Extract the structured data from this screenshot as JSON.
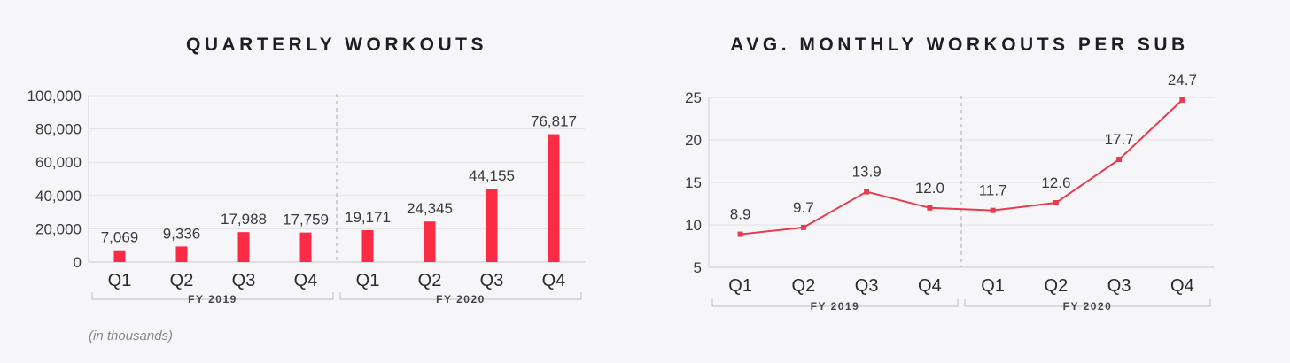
{
  "chart_data": [
    {
      "type": "bar",
      "title": "QUARTERLY WORKOUTS",
      "categories": [
        "Q1",
        "Q2",
        "Q3",
        "Q4",
        "Q1",
        "Q2",
        "Q3",
        "Q4"
      ],
      "groups": [
        {
          "label": "FY 2019",
          "from": 0,
          "to": 3
        },
        {
          "label": "FY 2020",
          "from": 4,
          "to": 7
        }
      ],
      "values": [
        7069,
        9336,
        17988,
        17759,
        19171,
        24345,
        44155,
        76817
      ],
      "value_labels": [
        "7,069",
        "9,336",
        "17,988",
        "17,759",
        "19,171",
        "24,345",
        "44,155",
        "76,817"
      ],
      "ylim": [
        0,
        100000
      ],
      "yticks": [
        0,
        20000,
        40000,
        60000,
        80000,
        100000
      ],
      "ytick_labels": [
        "0",
        "20,000",
        "40,000",
        "60,000",
        "80,000",
        "100,000"
      ],
      "note": "(in thousands)",
      "color": "#fb2a45",
      "grid": true
    },
    {
      "type": "line",
      "title": "AVG. MONTHLY WORKOUTS PER SUB",
      "categories": [
        "Q1",
        "Q2",
        "Q3",
        "Q4",
        "Q1",
        "Q2",
        "Q3",
        "Q4"
      ],
      "groups": [
        {
          "label": "FY 2019",
          "from": 0,
          "to": 3
        },
        {
          "label": "FY 2020",
          "from": 4,
          "to": 7
        }
      ],
      "values": [
        8.9,
        9.7,
        13.9,
        12.0,
        11.7,
        12.6,
        17.7,
        24.7
      ],
      "value_labels": [
        "8.9",
        "9.7",
        "13.9",
        "12.0",
        "11.7",
        "12.6",
        "17.7",
        "24.7"
      ],
      "ylim": [
        5,
        25
      ],
      "yticks": [
        5,
        10,
        15,
        20,
        25
      ],
      "ytick_labels": [
        "5",
        "10",
        "15",
        "20",
        "25"
      ],
      "color": "#e83a4e",
      "grid": true
    }
  ]
}
